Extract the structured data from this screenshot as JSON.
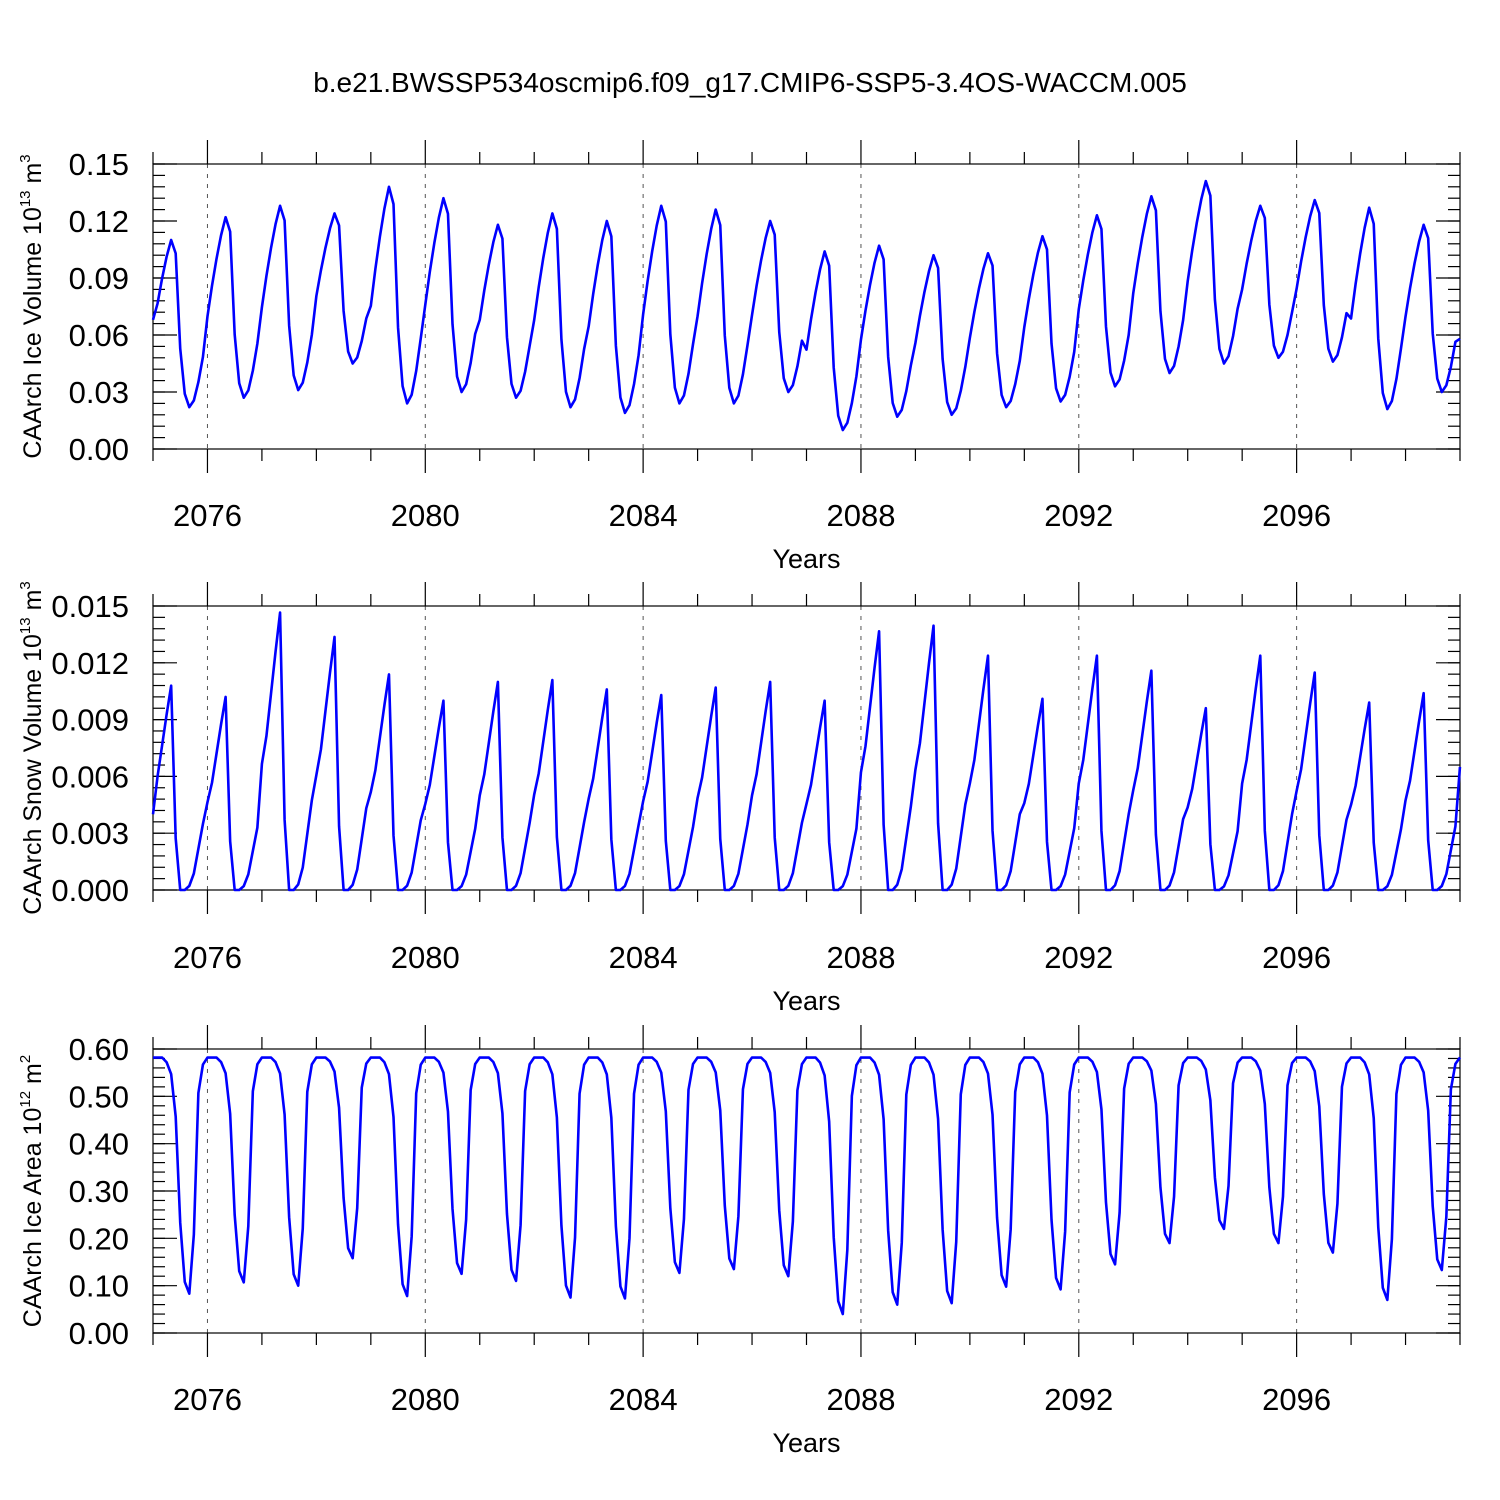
{
  "title": "b.e21.BWSSP534oscmip6.f09_g17.CMIP6-SSP5-3.4OS-WACCM.005",
  "colors": {
    "line": "#0000ff",
    "axis": "#000000"
  },
  "chart_data": [
    {
      "type": "line",
      "name": "ice-volume",
      "ylabel": "CAArch Ice Volume 10",
      "ylabel_exp": "13",
      "ylabel_unit": " m",
      "ylabel_unit_exp": "3",
      "xlabel": "Years",
      "xlim": [
        2075,
        2099
      ],
      "ylim": [
        0,
        0.15
      ],
      "x_ticks": [
        "2076",
        "2080",
        "2084",
        "2088",
        "2092",
        "2096"
      ],
      "x_tick_values": [
        2076,
        2080,
        2084,
        2088,
        2092,
        2096
      ],
      "y_ticks": [
        "0.00",
        "0.03",
        "0.06",
        "0.09",
        "0.12",
        "0.15"
      ],
      "y_tick_values": [
        0,
        0.03,
        0.06,
        0.09,
        0.12,
        0.15
      ],
      "x_start": 2075.0,
      "x_step": 0.08333,
      "cycle_peaks": [
        0.11,
        0.122,
        0.128,
        0.124,
        0.138,
        0.132,
        0.118,
        0.124,
        0.12,
        0.128,
        0.126,
        0.12,
        0.104,
        0.107,
        0.102,
        0.103,
        0.112,
        0.123,
        0.133,
        0.141,
        0.128,
        0.131,
        0.127,
        0.118
      ],
      "cycle_mins": [
        0.022,
        0.027,
        0.031,
        0.045,
        0.024,
        0.03,
        0.027,
        0.022,
        0.019,
        0.024,
        0.024,
        0.03,
        0.01,
        0.017,
        0.018,
        0.022,
        0.025,
        0.033,
        0.04,
        0.045,
        0.048,
        0.046,
        0.021,
        0.03
      ],
      "start_value": 0.068,
      "end_value": 0.058
    },
    {
      "type": "line",
      "name": "snow-volume",
      "ylabel": "CAArch Snow Volume 10",
      "ylabel_exp": "13",
      "ylabel_unit": " m",
      "ylabel_unit_exp": "3",
      "xlabel": "Years",
      "xlim": [
        2075,
        2099
      ],
      "ylim": [
        0,
        0.015
      ],
      "x_ticks": [
        "2076",
        "2080",
        "2084",
        "2088",
        "2092",
        "2096"
      ],
      "x_tick_values": [
        2076,
        2080,
        2084,
        2088,
        2092,
        2096
      ],
      "y_ticks": [
        "0.000",
        "0.003",
        "0.006",
        "0.009",
        "0.012",
        "0.015"
      ],
      "y_tick_values": [
        0,
        0.003,
        0.006,
        0.009,
        0.012,
        0.015
      ],
      "x_start": 2075.0,
      "x_step": 0.08333,
      "cycle_peaks": [
        0.0109,
        0.0103,
        0.0148,
        0.0135,
        0.0115,
        0.0101,
        0.0111,
        0.0112,
        0.0107,
        0.0104,
        0.0108,
        0.0111,
        0.0101,
        0.0138,
        0.0141,
        0.0125,
        0.0102,
        0.0125,
        0.0117,
        0.0097,
        0.0125,
        0.0116,
        0.01,
        0.0105
      ],
      "cycle_mins": [
        0.0,
        0.0,
        0.0,
        0.0,
        0.0,
        0.0,
        0.0,
        0.0,
        0.0,
        0.0,
        0.0,
        0.0,
        0.0,
        0.0,
        0.0,
        0.0,
        0.0,
        0.0,
        0.0,
        0.0,
        0.0,
        0.0,
        0.0,
        0.0
      ],
      "start_value": 0.004,
      "end_value": 0.0065
    },
    {
      "type": "line",
      "name": "ice-area",
      "ylabel": "CAArch Ice Area 10",
      "ylabel_exp": "12",
      "ylabel_unit": " m",
      "ylabel_unit_exp": "2",
      "xlabel": "Years",
      "xlim": [
        2075,
        2099
      ],
      "ylim": [
        0,
        0.6
      ],
      "x_ticks": [
        "2076",
        "2080",
        "2084",
        "2088",
        "2092",
        "2096"
      ],
      "x_tick_values": [
        2076,
        2080,
        2084,
        2088,
        2092,
        2096
      ],
      "y_ticks": [
        "0.00",
        "0.10",
        "0.20",
        "0.30",
        "0.40",
        "0.50",
        "0.60"
      ],
      "y_tick_values": [
        0,
        0.1,
        0.2,
        0.3,
        0.4,
        0.5,
        0.6
      ],
      "x_start": 2075.0,
      "x_step": 0.08333,
      "cycle_peaks": [
        0.582,
        0.582,
        0.582,
        0.582,
        0.582,
        0.582,
        0.582,
        0.582,
        0.582,
        0.582,
        0.582,
        0.582,
        0.582,
        0.582,
        0.582,
        0.582,
        0.582,
        0.582,
        0.582,
        0.582,
        0.582,
        0.582,
        0.582,
        0.582
      ],
      "cycle_mins": [
        0.083,
        0.107,
        0.1,
        0.158,
        0.078,
        0.125,
        0.11,
        0.075,
        0.073,
        0.127,
        0.135,
        0.12,
        0.04,
        0.06,
        0.063,
        0.098,
        0.092,
        0.145,
        0.19,
        0.22,
        0.19,
        0.17,
        0.07,
        0.133
      ],
      "start_value": 0.582,
      "end_value": 0.582
    }
  ]
}
